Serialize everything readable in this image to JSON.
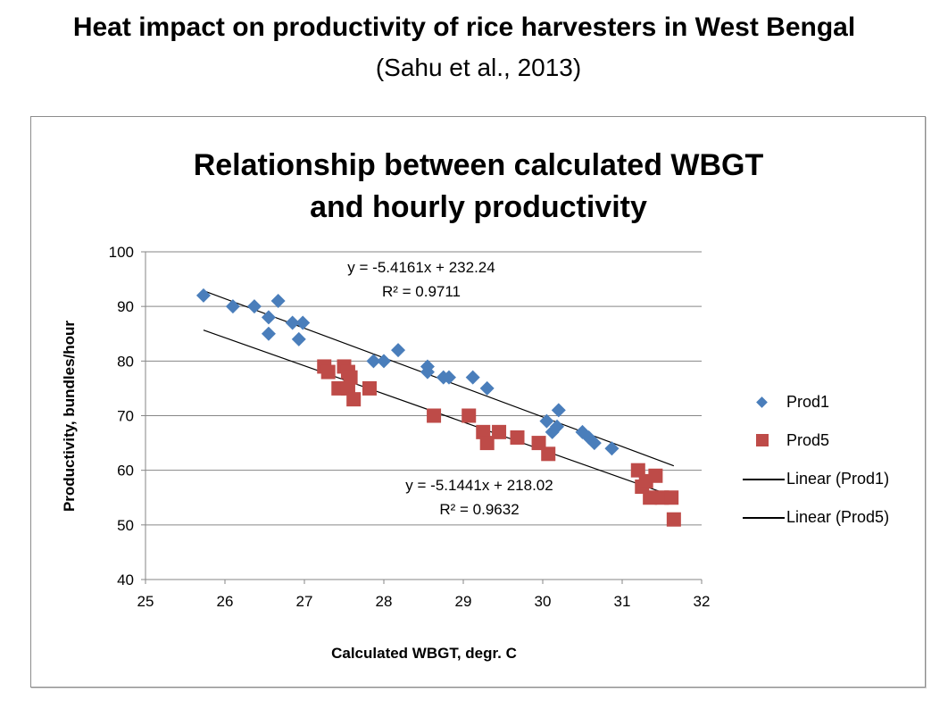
{
  "slide": {
    "title": "Heat impact on productivity of rice harvesters in West Bengal",
    "subtitle": "(Sahu et al., 2013)"
  },
  "chart_data": {
    "type": "scatter",
    "title_line1": "Relationship between calculated WBGT",
    "title_line2": "and hourly productivity",
    "xlabel": "Calculated WBGT, degr. C",
    "ylabel": "Productivity, bundles/hour",
    "xlim": [
      25,
      32
    ],
    "ylim": [
      40,
      100
    ],
    "x_ticks": [
      "25",
      "26",
      "27",
      "28",
      "29",
      "30",
      "31",
      "32"
    ],
    "y_ticks": [
      "40",
      "50",
      "60",
      "70",
      "80",
      "90",
      "100"
    ],
    "gridlines": "horizontal",
    "legend_position": "right",
    "series": [
      {
        "name": "Prod1",
        "marker": "diamond",
        "color": "#4a7ebb",
        "points": [
          [
            25.73,
            92
          ],
          [
            26.1,
            90
          ],
          [
            26.37,
            90
          ],
          [
            26.67,
            91
          ],
          [
            26.55,
            88
          ],
          [
            26.55,
            85
          ],
          [
            26.85,
            87
          ],
          [
            26.98,
            87
          ],
          [
            26.93,
            84
          ],
          [
            27.87,
            80
          ],
          [
            28.0,
            80
          ],
          [
            28.18,
            82
          ],
          [
            28.55,
            79
          ],
          [
            28.55,
            78
          ],
          [
            28.75,
            77
          ],
          [
            28.82,
            77
          ],
          [
            29.12,
            77
          ],
          [
            29.3,
            75
          ],
          [
            30.05,
            69
          ],
          [
            30.12,
            67
          ],
          [
            30.18,
            68
          ],
          [
            30.2,
            71
          ],
          [
            30.5,
            67
          ],
          [
            30.58,
            66
          ],
          [
            30.65,
            65
          ],
          [
            30.87,
            64
          ]
        ]
      },
      {
        "name": "Prod5",
        "marker": "square",
        "color": "#be4b48",
        "points": [
          [
            27.25,
            79
          ],
          [
            27.3,
            78
          ],
          [
            27.43,
            75
          ],
          [
            27.5,
            79
          ],
          [
            27.55,
            78
          ],
          [
            27.58,
            77
          ],
          [
            27.55,
            75
          ],
          [
            27.62,
            73
          ],
          [
            27.82,
            75
          ],
          [
            28.63,
            70
          ],
          [
            29.07,
            70
          ],
          [
            29.25,
            67
          ],
          [
            29.3,
            65
          ],
          [
            29.45,
            67
          ],
          [
            29.68,
            66
          ],
          [
            29.95,
            65
          ],
          [
            30.07,
            63
          ],
          [
            31.2,
            60
          ],
          [
            31.25,
            57
          ],
          [
            31.3,
            58
          ],
          [
            31.35,
            55
          ],
          [
            31.42,
            59
          ],
          [
            31.5,
            55
          ],
          [
            31.62,
            55
          ],
          [
            31.65,
            51
          ]
        ]
      }
    ],
    "trendlines": [
      {
        "name": "Linear (Prod1)",
        "slope": -5.4161,
        "intercept": 232.24,
        "x_range": [
          25.73,
          31.65
        ],
        "equation": "y = -5.4161x + 232.24",
        "r2": "R² = 0.9711"
      },
      {
        "name": "Linear (Prod5)",
        "slope": -5.1441,
        "intercept": 218.02,
        "x_range": [
          25.73,
          31.65
        ],
        "equation": "y = -5.1441x + 218.02",
        "r2": "R² = 0.9632"
      }
    ],
    "legend": [
      "Prod1",
      "Prod5",
      "Linear (Prod1)",
      "Linear (Prod5)"
    ]
  }
}
